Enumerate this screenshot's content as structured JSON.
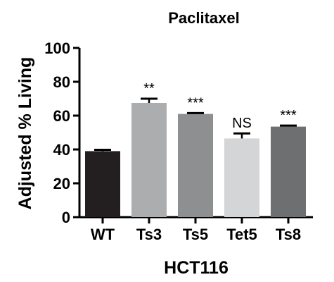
{
  "chart_data": {
    "type": "bar",
    "title": "Paclitaxel",
    "xlabel": "HCT116",
    "ylabel": "Adjusted % Living",
    "categories": [
      "WT",
      "Ts3",
      "Ts5",
      "Tet5",
      "Ts8"
    ],
    "values": [
      39,
      67.5,
      61,
      46.5,
      53.5
    ],
    "errors": [
      0.8,
      2.5,
      0.5,
      3,
      0.6
    ],
    "annotations": [
      "",
      "**",
      "***",
      "NS",
      "***"
    ],
    "colors": [
      "#231f20",
      "#acadae",
      "#8e8f90",
      "#d4d5d6",
      "#6e6f70"
    ],
    "ylim": [
      0,
      100
    ],
    "yticks": [
      0,
      20,
      40,
      60,
      80,
      100
    ],
    "grid": false
  }
}
